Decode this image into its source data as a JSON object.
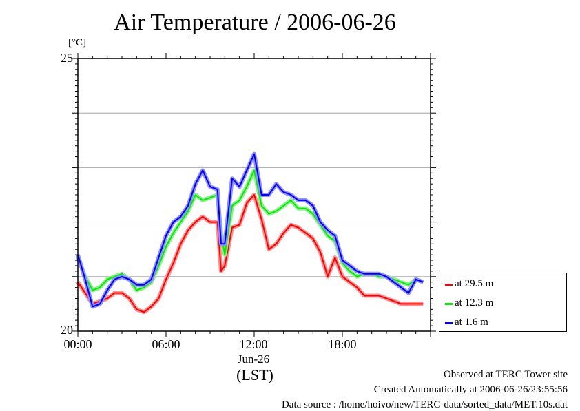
{
  "title": "Air Temperature / 2006-06-26",
  "unit_label": "[°C]",
  "x_date_label": "Jun-26",
  "x_tz_label": "(LST)",
  "footer": {
    "line1": "Observed at TERC Tower site",
    "line2": "Created Automatically at 2006-06-26/23:55:56",
    "line3": "Data source : /home/hoivo/new/TERC-data/sorted_data/MET.10s.dat"
  },
  "chart_data": {
    "type": "line",
    "title": "Air Temperature / 2006-06-26",
    "ylabel": "[°C]",
    "xlabel": "(LST)",
    "xlim": [
      0,
      24
    ],
    "ylim": [
      20,
      25
    ],
    "y_ticks": [
      20,
      25
    ],
    "y_tick_labels": [
      "20",
      "25"
    ],
    "x_tick_labels": [
      "00:00",
      "06:00",
      "12:00",
      "18:00"
    ],
    "x_ticks": [
      0,
      6,
      12,
      18
    ],
    "grid": true,
    "legend_position": "right",
    "x": [
      0.0,
      0.5,
      1.0,
      1.5,
      2.0,
      2.5,
      3.0,
      3.5,
      4.0,
      4.5,
      5.0,
      5.5,
      6.0,
      6.5,
      7.0,
      7.5,
      8.0,
      8.5,
      9.0,
      9.5,
      9.75,
      10.0,
      10.5,
      11.0,
      11.5,
      12.0,
      12.5,
      13.0,
      13.5,
      14.0,
      14.5,
      15.0,
      15.5,
      16.0,
      16.5,
      17.0,
      17.5,
      18.0,
      18.5,
      19.0,
      19.5,
      20.0,
      20.5,
      21.0,
      21.5,
      22.0,
      22.5,
      23.0,
      23.5
    ],
    "series": [
      {
        "name": "at 29.5 m",
        "color": "#ff0000",
        "values": [
          20.9,
          20.7,
          20.5,
          20.55,
          20.6,
          20.7,
          20.7,
          20.6,
          20.4,
          20.35,
          20.45,
          20.6,
          20.95,
          21.25,
          21.6,
          21.85,
          22.0,
          22.1,
          22.0,
          22.0,
          21.1,
          21.2,
          21.9,
          21.95,
          22.35,
          22.5,
          22.05,
          21.5,
          21.6,
          21.8,
          21.95,
          21.9,
          21.8,
          21.7,
          21.45,
          21.0,
          21.35,
          21.0,
          20.9,
          20.8,
          20.65,
          20.65,
          20.65,
          20.6,
          20.55,
          20.5,
          20.5,
          20.5,
          20.5
        ]
      },
      {
        "name": "at 12.3 m",
        "color": "#00ee00",
        "values": [
          21.35,
          21.0,
          20.75,
          20.8,
          20.95,
          21.0,
          21.05,
          20.95,
          20.75,
          20.8,
          20.9,
          21.2,
          21.55,
          21.8,
          22.0,
          22.2,
          22.5,
          22.4,
          22.45,
          22.5,
          21.8,
          21.4,
          22.3,
          22.4,
          22.65,
          22.95,
          22.3,
          22.15,
          22.2,
          22.3,
          22.4,
          22.25,
          22.25,
          22.15,
          21.95,
          21.75,
          21.65,
          21.25,
          21.1,
          21.0,
          21.05,
          21.05,
          21.0,
          21.0,
          20.95,
          20.9,
          20.85,
          20.95,
          20.9
        ]
      },
      {
        "name": "at 1.6 m",
        "color": "#0000ff",
        "values": [
          21.4,
          20.95,
          20.45,
          20.5,
          20.75,
          20.95,
          21.0,
          20.95,
          20.85,
          20.85,
          20.95,
          21.35,
          21.75,
          22.0,
          22.1,
          22.3,
          22.7,
          22.95,
          22.65,
          22.6,
          21.6,
          21.6,
          22.8,
          22.65,
          22.95,
          23.25,
          22.5,
          22.5,
          22.7,
          22.55,
          22.5,
          22.4,
          22.4,
          22.3,
          22.0,
          21.85,
          21.75,
          21.3,
          21.2,
          21.1,
          21.05,
          21.05,
          21.05,
          21.0,
          20.9,
          20.8,
          20.7,
          20.95,
          20.9
        ]
      }
    ]
  }
}
